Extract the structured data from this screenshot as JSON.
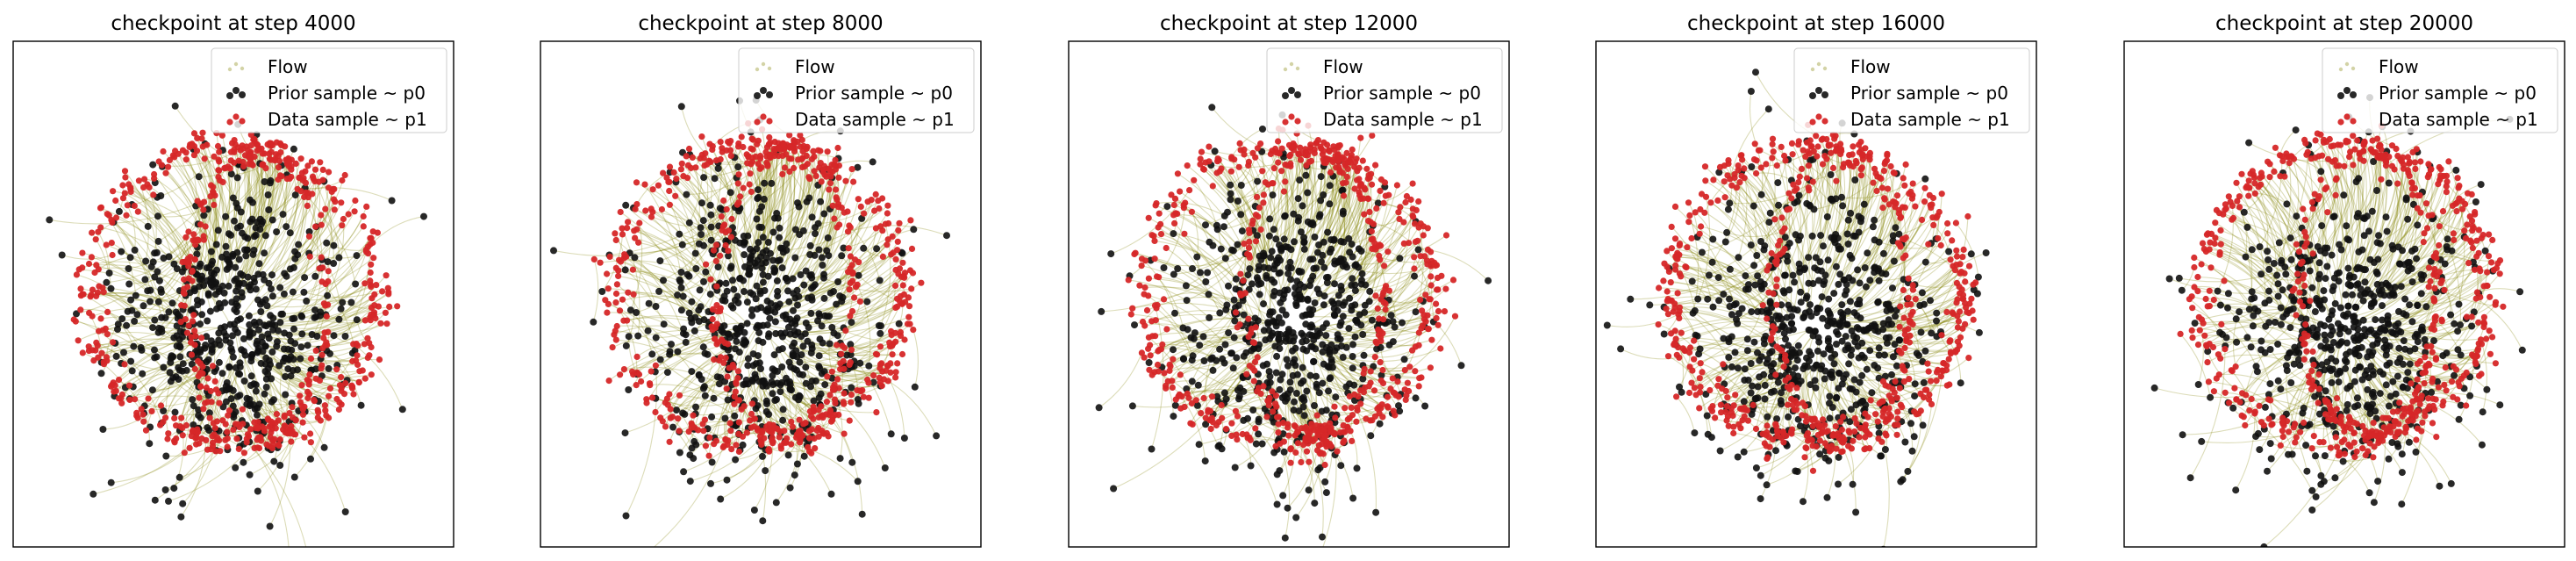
{
  "figure": {
    "colors": {
      "flow": "#808000",
      "prior": "#111111",
      "data": "#d62728",
      "legend_border": "#cccccc",
      "axes_frame": "#000000"
    },
    "legend": {
      "flow_label": "Flow",
      "prior_label": "Prior sample ~ p0",
      "data_label": "Data sample ~ p1",
      "placement": "upper right"
    }
  },
  "chart_data": [
    {
      "type": "scatter",
      "title": "checkpoint at step 4000",
      "step": 4000,
      "xlabel": "",
      "ylabel": "",
      "ticks_visible": false,
      "grid": false,
      "xlim": [
        -3.2,
        3.2
      ],
      "ylim": [
        -3.0,
        3.8
      ],
      "legend_placement": "upper right",
      "series": [
        {
          "name": "Flow",
          "kind": "trajectories",
          "description_values": {
            "from": "p0",
            "to": "p1"
          }
        },
        {
          "name": "Prior sample ~ p0",
          "kind": "points",
          "distribution": {
            "center": [
              0.0,
              0.0
            ],
            "std": [
              0.85,
              1.0
            ]
          }
        },
        {
          "name": "Data sample ~ p1",
          "kind": "points",
          "distribution": {
            "shape": "double-ring",
            "outer_radius": [
              2.1,
              2.0
            ],
            "inner_radius": [
              1.0,
              1.9
            ]
          }
        }
      ]
    },
    {
      "type": "scatter",
      "title": "checkpoint at step 8000",
      "step": 8000,
      "xlabel": "",
      "ylabel": "",
      "ticks_visible": false,
      "grid": false,
      "xlim": [
        -3.2,
        3.2
      ],
      "ylim": [
        -3.0,
        3.8
      ],
      "legend_placement": "upper right",
      "series": [
        {
          "name": "Flow",
          "kind": "trajectories",
          "description_values": {
            "from": "p0",
            "to": "p1"
          }
        },
        {
          "name": "Prior sample ~ p0",
          "kind": "points",
          "distribution": {
            "center": [
              0.0,
              0.0
            ],
            "std": [
              0.85,
              1.0
            ]
          }
        },
        {
          "name": "Data sample ~ p1",
          "kind": "points",
          "distribution": {
            "shape": "double-ring",
            "outer_radius": [
              2.1,
              2.0
            ],
            "inner_radius": [
              1.0,
              1.9
            ]
          }
        }
      ]
    },
    {
      "type": "scatter",
      "title": "checkpoint at step 12000",
      "step": 12000,
      "xlabel": "",
      "ylabel": "",
      "ticks_visible": false,
      "grid": false,
      "xlim": [
        -3.2,
        3.2
      ],
      "ylim": [
        -3.0,
        3.8
      ],
      "legend_placement": "upper right",
      "series": [
        {
          "name": "Flow",
          "kind": "trajectories",
          "description_values": {
            "from": "p0",
            "to": "p1"
          }
        },
        {
          "name": "Prior sample ~ p0",
          "kind": "points",
          "distribution": {
            "center": [
              0.0,
              0.0
            ],
            "std": [
              0.85,
              1.0
            ]
          }
        },
        {
          "name": "Data sample ~ p1",
          "kind": "points",
          "distribution": {
            "shape": "double-ring",
            "outer_radius": [
              2.1,
              2.0
            ],
            "inner_radius": [
              1.0,
              1.9
            ]
          }
        }
      ]
    },
    {
      "type": "scatter",
      "title": "checkpoint at step 16000",
      "step": 16000,
      "xlabel": "",
      "ylabel": "",
      "ticks_visible": false,
      "grid": false,
      "xlim": [
        -3.2,
        3.2
      ],
      "ylim": [
        -3.0,
        3.8
      ],
      "legend_placement": "upper right",
      "series": [
        {
          "name": "Flow",
          "kind": "trajectories",
          "description_values": {
            "from": "p0",
            "to": "p1"
          }
        },
        {
          "name": "Prior sample ~ p0",
          "kind": "points",
          "distribution": {
            "center": [
              0.0,
              0.0
            ],
            "std": [
              0.85,
              1.0
            ]
          }
        },
        {
          "name": "Data sample ~ p1",
          "kind": "points",
          "distribution": {
            "shape": "double-ring",
            "outer_radius": [
              2.1,
              2.0
            ],
            "inner_radius": [
              1.0,
              1.9
            ]
          }
        }
      ]
    },
    {
      "type": "scatter",
      "title": "checkpoint at step 20000",
      "step": 20000,
      "xlabel": "",
      "ylabel": "",
      "ticks_visible": false,
      "grid": false,
      "xlim": [
        -3.2,
        3.2
      ],
      "ylim": [
        -3.0,
        3.8
      ],
      "legend_placement": "upper right",
      "series": [
        {
          "name": "Flow",
          "kind": "trajectories",
          "description_values": {
            "from": "p0",
            "to": "p1"
          }
        },
        {
          "name": "Prior sample ~ p0",
          "kind": "points",
          "distribution": {
            "center": [
              0.0,
              0.0
            ],
            "std": [
              0.85,
              1.0
            ]
          }
        },
        {
          "name": "Data sample ~ p1",
          "kind": "points",
          "distribution": {
            "shape": "double-ring",
            "outer_radius": [
              2.1,
              2.0
            ],
            "inner_radius": [
              1.0,
              1.9
            ]
          }
        }
      ]
    }
  ]
}
